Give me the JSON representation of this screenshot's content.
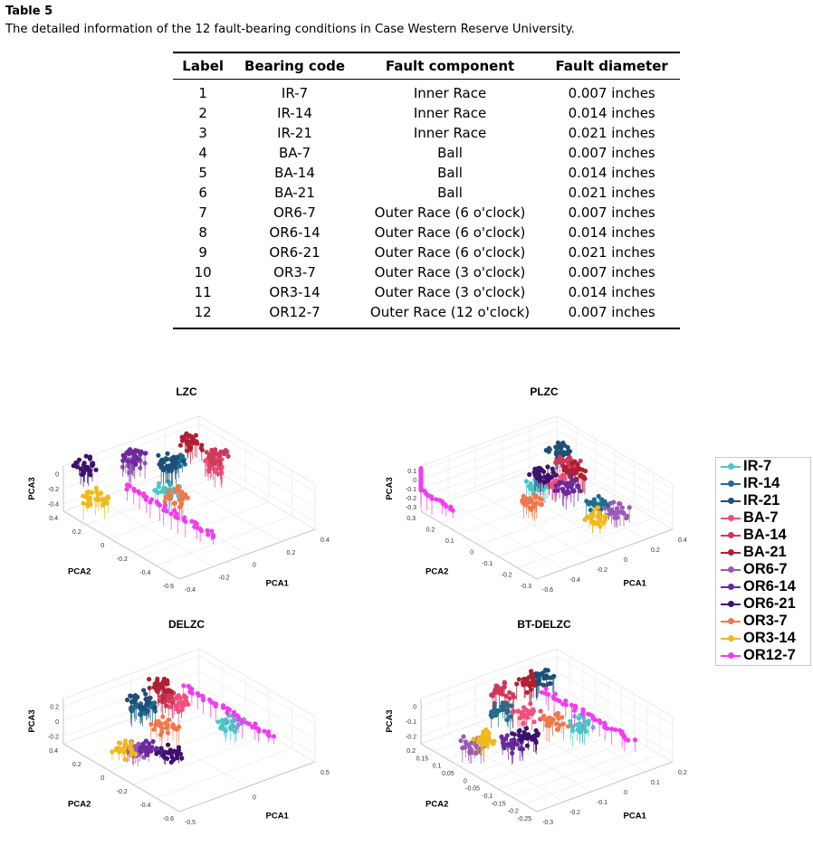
{
  "caption": {
    "label": "Table 5",
    "text": "The detailed information of the 12 fault-bearing conditions in Case Western Reserve University."
  },
  "table": {
    "headers": [
      "Label",
      "Bearing code",
      "Fault component",
      "Fault diameter"
    ],
    "rows": [
      [
        "1",
        "IR-7",
        "Inner Race",
        "0.007 inches"
      ],
      [
        "2",
        "IR-14",
        "Inner Race",
        "0.014 inches"
      ],
      [
        "3",
        "IR-21",
        "Inner Race",
        "0.021 inches"
      ],
      [
        "4",
        "BA-7",
        "Ball",
        "0.007 inches"
      ],
      [
        "5",
        "BA-14",
        "Ball",
        "0.014 inches"
      ],
      [
        "6",
        "BA-21",
        "Ball",
        "0.021 inches"
      ],
      [
        "7",
        "OR6-7",
        "Outer Race (6 o'clock)",
        "0.007 inches"
      ],
      [
        "8",
        "OR6-14",
        "Outer Race (6 o'clock)",
        "0.014 inches"
      ],
      [
        "9",
        "OR6-21",
        "Outer Race (6 o'clock)",
        "0.021 inches"
      ],
      [
        "10",
        "OR3-7",
        "Outer Race (3 o'clock)",
        "0.007 inches"
      ],
      [
        "11",
        "OR3-14",
        "Outer Race (3 o'clock)",
        "0.014 inches"
      ],
      [
        "12",
        "OR12-7",
        "Outer Race (12 o'clock)",
        "0.007 inches"
      ]
    ]
  },
  "legend": [
    {
      "name": "IR-7",
      "color": "#4dc4c6"
    },
    {
      "name": "IR-14",
      "color": "#1f6d8c"
    },
    {
      "name": "IR-21",
      "color": "#1e4f78"
    },
    {
      "name": "BA-7",
      "color": "#f0507e"
    },
    {
      "name": "BA-14",
      "color": "#cc3b5c"
    },
    {
      "name": "BA-21",
      "color": "#b01f32"
    },
    {
      "name": "OR6-7",
      "color": "#9a5ab8"
    },
    {
      "name": "OR6-14",
      "color": "#6a2a9c"
    },
    {
      "name": "OR6-21",
      "color": "#3d116e"
    },
    {
      "name": "OR3-7",
      "color": "#f0784a"
    },
    {
      "name": "OR3-14",
      "color": "#f2b81c"
    },
    {
      "name": "OR12-7",
      "color": "#f23cf0"
    }
  ],
  "chart_data": [
    {
      "type": "scatter",
      "title": "LZC",
      "xlabel": "PCA1",
      "ylabel": "PCA2",
      "zlabel": "PCA3",
      "x_ticks": [
        "-0.4",
        "-0.2",
        "0",
        "0.2",
        "0.4"
      ],
      "y_ticks": [
        "-0.6",
        "-0.4",
        "-0.2",
        "0",
        "0.2",
        "0.4"
      ],
      "z_ticks": [
        "-0.4",
        "-0.2",
        "0"
      ],
      "grid": true,
      "clusters": [
        {
          "series": "IR-7",
          "x": -0.05,
          "y": 0.0,
          "z": -0.15
        },
        {
          "series": "IR-14",
          "x": 0.05,
          "y": 0.1,
          "z": 0.05
        },
        {
          "series": "IR-21",
          "x": 0.05,
          "y": 0.15,
          "z": 0.0
        },
        {
          "series": "BA-7",
          "x": 0.25,
          "y": 0.05,
          "z": -0.1
        },
        {
          "series": "BA-14",
          "x": 0.3,
          "y": 0.1,
          "z": -0.05
        },
        {
          "series": "BA-21",
          "x": 0.25,
          "y": 0.25,
          "z": 0.0
        },
        {
          "series": "OR6-7",
          "x": -0.1,
          "y": 0.25,
          "z": 0.05
        },
        {
          "series": "OR6-14",
          "x": -0.05,
          "y": 0.3,
          "z": 0.05
        },
        {
          "series": "OR6-21",
          "x": -0.3,
          "y": 0.35,
          "z": 0.05
        },
        {
          "series": "OR3-7",
          "x": -0.05,
          "y": -0.05,
          "z": -0.2
        },
        {
          "series": "OR3-14",
          "x": -0.35,
          "y": 0.2,
          "z": -0.2
        },
        {
          "series": "OR12-7",
          "x": -0.05,
          "y": -0.4,
          "z": -0.4
        }
      ]
    },
    {
      "type": "scatter",
      "title": "PLZC",
      "xlabel": "PCA1",
      "ylabel": "PCA2",
      "zlabel": "PCA3",
      "x_ticks": [
        "-0.6",
        "-0.4",
        "-0.2",
        "0",
        "0.2",
        "0.4"
      ],
      "y_ticks": [
        "-0.3",
        "-0.2",
        "-0.1",
        "0",
        "0.1",
        "0.2",
        "0.3"
      ],
      "z_ticks": [
        "-0.3",
        "-0.2",
        "-0.1",
        "0",
        "0.1"
      ],
      "grid": true,
      "clusters": [
        {
          "series": "IR-7",
          "x": -0.1,
          "y": 0.05,
          "z": 0.0
        },
        {
          "series": "IR-14",
          "x": 0.15,
          "y": -0.1,
          "z": -0.2
        },
        {
          "series": "IR-21",
          "x": 0.2,
          "y": 0.15,
          "z": 0.1
        },
        {
          "series": "BA-7",
          "x": 0.05,
          "y": 0.05,
          "z": -0.05
        },
        {
          "series": "BA-14",
          "x": 0.2,
          "y": 0.1,
          "z": 0.0
        },
        {
          "series": "BA-21",
          "x": 0.15,
          "y": 0.05,
          "z": 0.0
        },
        {
          "series": "OR6-7",
          "x": 0.2,
          "y": -0.15,
          "z": -0.25
        },
        {
          "series": "OR6-14",
          "x": 0.05,
          "y": 0.0,
          "z": -0.05
        },
        {
          "series": "OR6-21",
          "x": 0.0,
          "y": 0.1,
          "z": 0.0
        },
        {
          "series": "OR3-7",
          "x": -0.2,
          "y": 0.0,
          "z": -0.1
        },
        {
          "series": "OR3-14",
          "x": 0.05,
          "y": -0.15,
          "z": -0.25
        },
        {
          "series": "OR12-7",
          "x": -0.5,
          "y": 0.2,
          "z": -0.3
        }
      ]
    },
    {
      "type": "scatter",
      "title": "DELZC",
      "xlabel": "PCA1",
      "ylabel": "PCA2",
      "zlabel": "PCA3",
      "x_ticks": [
        "-0.5",
        "0",
        "0.5"
      ],
      "y_ticks": [
        "-0.6",
        "-0.4",
        "-0.2",
        "0",
        "0.2",
        "0.4"
      ],
      "z_ticks": [
        "-0.2",
        "0",
        "0.2"
      ],
      "grid": true,
      "clusters": [
        {
          "series": "IR-7",
          "x": 0.3,
          "y": -0.1,
          "z": -0.1
        },
        {
          "series": "IR-14",
          "x": -0.1,
          "y": 0.2,
          "z": 0.1
        },
        {
          "series": "IR-21",
          "x": -0.05,
          "y": 0.25,
          "z": 0.1
        },
        {
          "series": "BA-7",
          "x": 0.15,
          "y": 0.15,
          "z": 0.05
        },
        {
          "series": "BA-14",
          "x": 0.1,
          "y": 0.2,
          "z": 0.1
        },
        {
          "series": "BA-21",
          "x": 0.15,
          "y": 0.3,
          "z": 0.15
        },
        {
          "series": "OR6-7",
          "x": -0.3,
          "y": 0.0,
          "z": -0.15
        },
        {
          "series": "OR6-14",
          "x": -0.2,
          "y": 0.0,
          "z": -0.2
        },
        {
          "series": "OR6-21",
          "x": -0.15,
          "y": -0.1,
          "z": -0.2
        },
        {
          "series": "OR3-7",
          "x": -0.05,
          "y": 0.05,
          "z": -0.05
        },
        {
          "series": "OR3-14",
          "x": -0.35,
          "y": 0.05,
          "z": -0.15
        },
        {
          "series": "OR12-7",
          "x": 0.45,
          "y": -0.3,
          "z": -0.2
        }
      ]
    },
    {
      "type": "scatter",
      "title": "BT-DELZC",
      "xlabel": "PCA1",
      "ylabel": "PCA2",
      "zlabel": "PCA3",
      "x_ticks": [
        "-0.3",
        "-0.2",
        "-0.1",
        "0",
        "0.1",
        "0.2"
      ],
      "y_ticks": [
        "-0.25",
        "-0.2",
        "-0.15",
        "-0.1",
        "-0.05",
        "0",
        "0.05",
        "0.1",
        "0.15",
        "0.2"
      ],
      "z_ticks": [
        "-0.2",
        "-0.1",
        "0"
      ],
      "grid": true,
      "clusters": [
        {
          "series": "IR-7",
          "x": 0.05,
          "y": -0.05,
          "z": -0.1
        },
        {
          "series": "IR-14",
          "x": -0.1,
          "y": 0.1,
          "z": -0.05
        },
        {
          "series": "IR-21",
          "x": 0.1,
          "y": 0.15,
          "z": 0.0
        },
        {
          "series": "BA-7",
          "x": -0.05,
          "y": 0.05,
          "z": -0.05
        },
        {
          "series": "BA-14",
          "x": -0.05,
          "y": 0.15,
          "z": 0.0
        },
        {
          "series": "BA-21",
          "x": 0.05,
          "y": 0.15,
          "z": 0.0
        },
        {
          "series": "OR6-7",
          "x": -0.25,
          "y": 0.05,
          "z": -0.15
        },
        {
          "series": "OR6-14",
          "x": -0.15,
          "y": 0.0,
          "z": -0.15
        },
        {
          "series": "OR6-21",
          "x": -0.1,
          "y": 0.0,
          "z": -0.15
        },
        {
          "series": "OR3-7",
          "x": 0.0,
          "y": 0.0,
          "z": -0.1
        },
        {
          "series": "OR3-14",
          "x": -0.2,
          "y": 0.05,
          "z": -0.15
        },
        {
          "series": "OR12-7",
          "x": 0.15,
          "y": -0.15,
          "z": -0.2
        }
      ]
    }
  ]
}
